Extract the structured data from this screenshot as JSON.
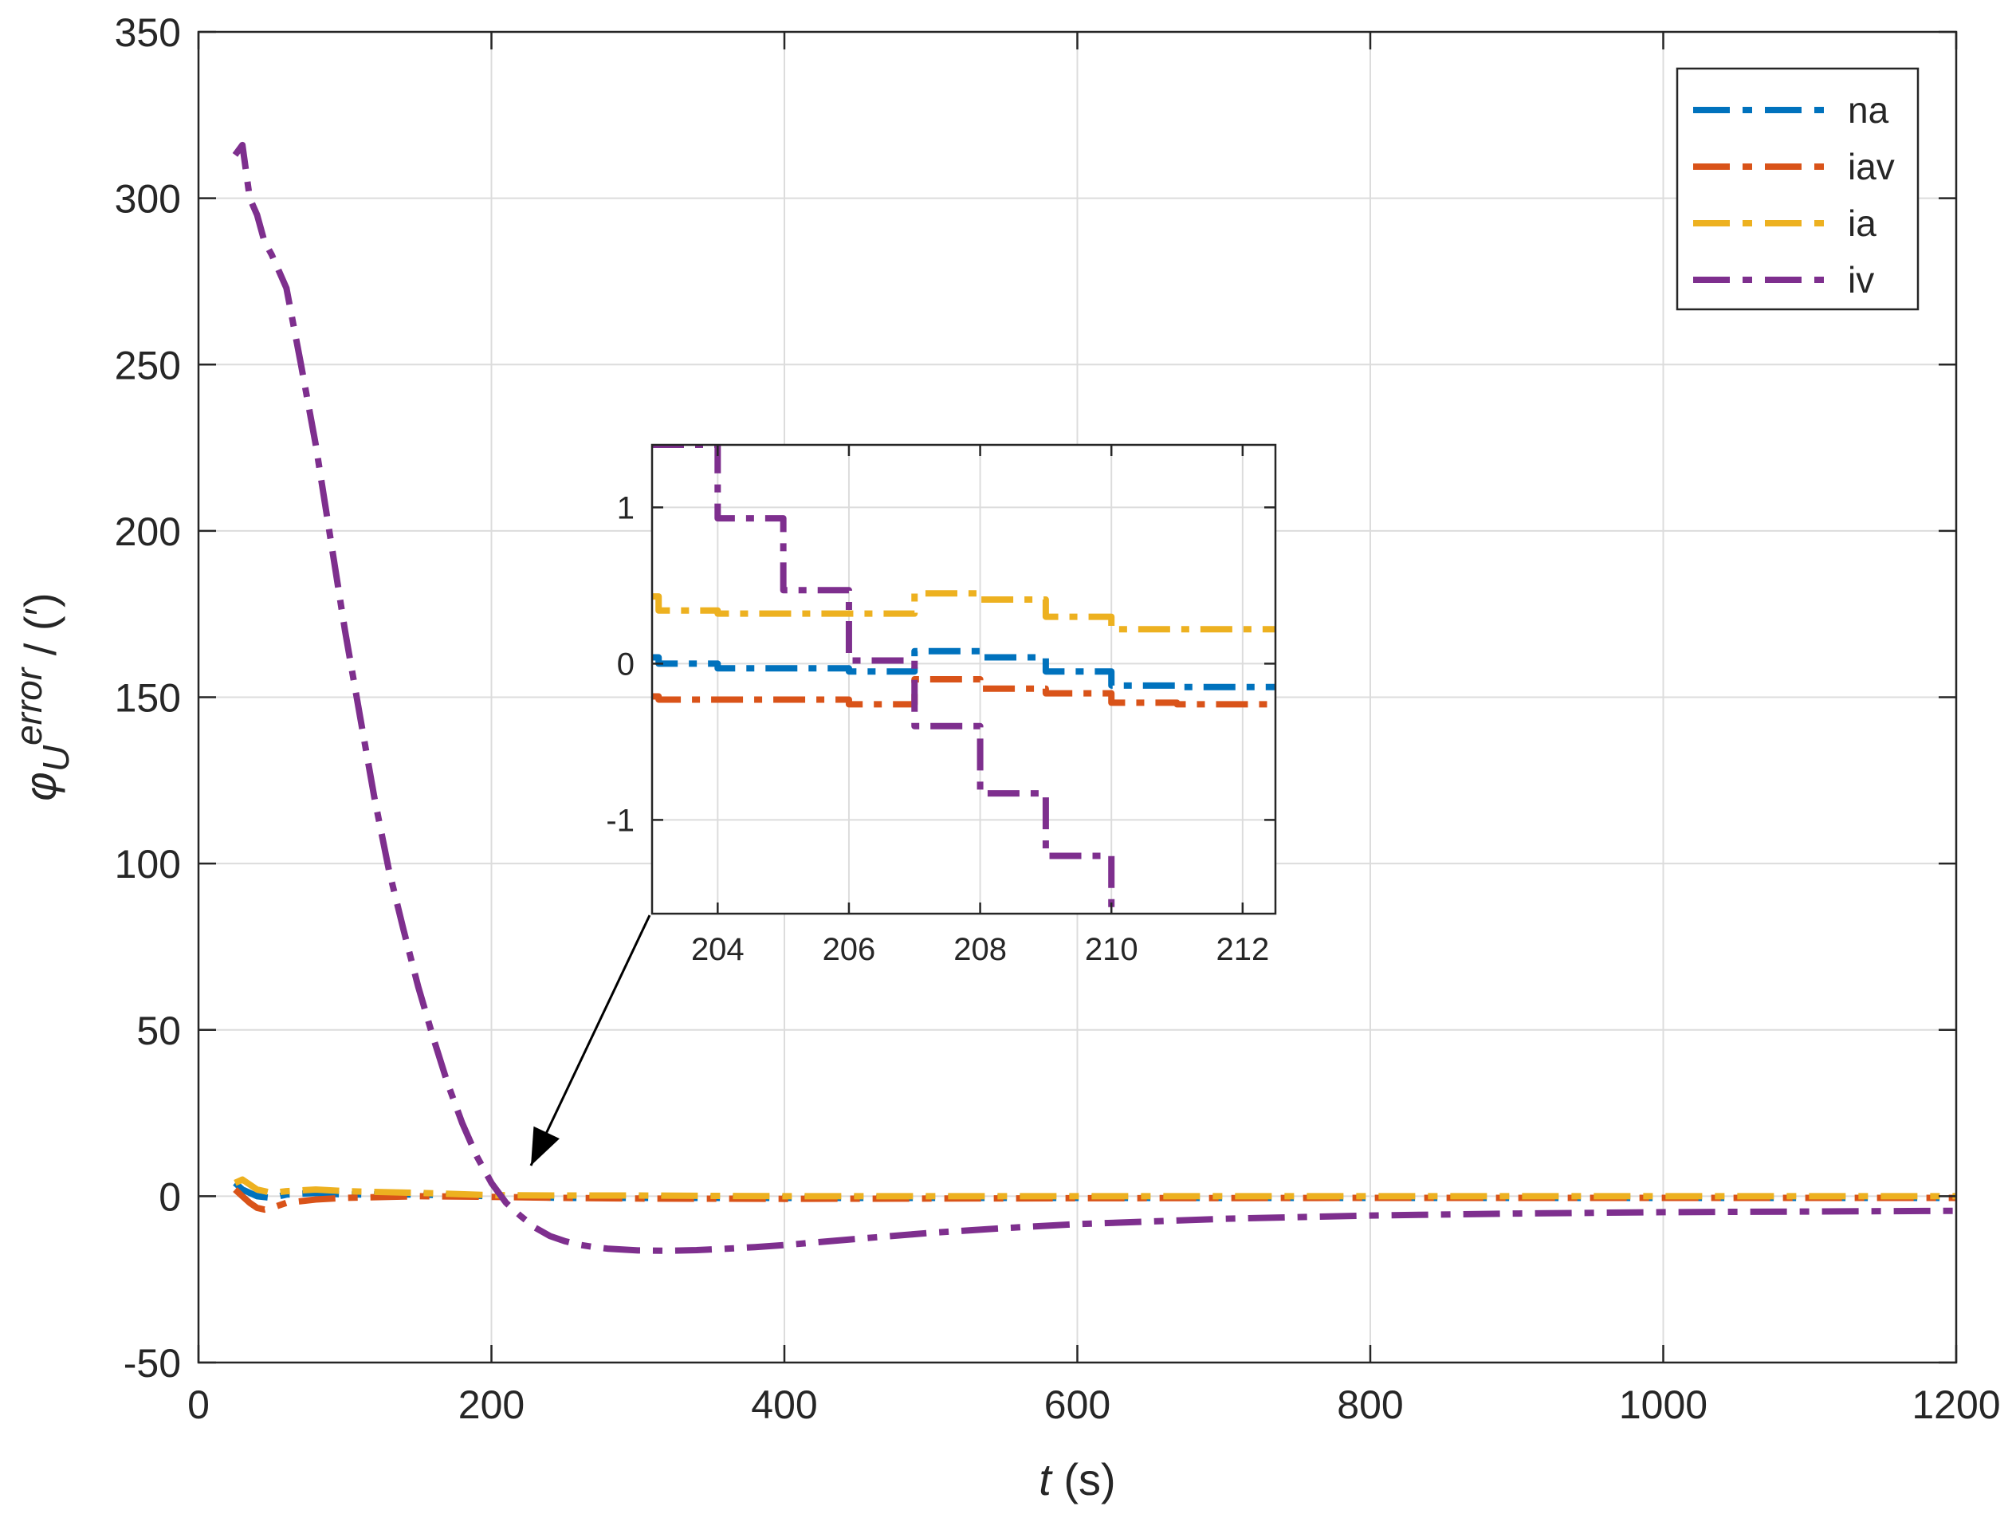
{
  "chart_data": [
    {
      "type": "line",
      "title": "",
      "xlabel": "t",
      "xlabel_unit": "(s)",
      "ylabel_symbol": "φ",
      "ylabel_sub": "U",
      "ylabel_sup": "error",
      "ylabel_unit": "/ (′)",
      "xlim": [
        0,
        1200
      ],
      "ylim": [
        -50,
        350
      ],
      "xticks": [
        0,
        200,
        400,
        600,
        800,
        1000,
        1200
      ],
      "yticks": [
        -50,
        0,
        50,
        100,
        150,
        200,
        250,
        300,
        350
      ],
      "grid": true,
      "legend_position": "top-right",
      "series": [
        {
          "name": "na",
          "color": "#0072BD",
          "x": [
            25,
            30,
            40,
            50,
            60,
            80,
            100,
            150,
            200,
            250,
            300,
            400,
            600,
            800,
            1000,
            1200
          ],
          "y": [
            4,
            2,
            0,
            -0.5,
            0.5,
            1,
            0.5,
            0.5,
            0,
            -0.5,
            -0.5,
            -0.5,
            -0.5,
            -0.5,
            -0.5,
            -0.5
          ]
        },
        {
          "name": "iav",
          "color": "#D95319",
          "x": [
            25,
            30,
            35,
            40,
            45,
            50,
            60,
            80,
            100,
            150,
            200,
            250,
            300,
            400,
            600,
            800,
            1000,
            1200
          ],
          "y": [
            2,
            0,
            -2,
            -3.5,
            -4,
            -3.5,
            -2,
            -1,
            -0.5,
            0,
            -0.2,
            -0.5,
            -0.7,
            -0.8,
            -0.6,
            -0.5,
            -0.5,
            -0.5
          ]
        },
        {
          "name": "ia",
          "color": "#EDB120",
          "x": [
            25,
            30,
            40,
            50,
            60,
            80,
            100,
            150,
            200,
            250,
            300,
            400,
            600,
            800,
            1000,
            1200
          ],
          "y": [
            4,
            5,
            2,
            1,
            1.5,
            2,
            1.5,
            1,
            0.3,
            0.2,
            0.2,
            0,
            0,
            0,
            0,
            0
          ]
        },
        {
          "name": "iv",
          "color": "#7E2F8E",
          "x": [
            25,
            30,
            35,
            40,
            45,
            50,
            55,
            60,
            70,
            80,
            90,
            100,
            110,
            120,
            130,
            140,
            150,
            160,
            170,
            180,
            190,
            200,
            210,
            220,
            230,
            240,
            250,
            260,
            270,
            280,
            300,
            320,
            340,
            360,
            380,
            400,
            450,
            500,
            550,
            600,
            700,
            800,
            900,
            1000,
            1100,
            1200
          ],
          "y": [
            313,
            316,
            300,
            295,
            287,
            283,
            278,
            273,
            250,
            226,
            198,
            170,
            145,
            120,
            98,
            80,
            63,
            48,
            34,
            22,
            12,
            4,
            -2,
            -6,
            -9.5,
            -12,
            -13.5,
            -14.6,
            -15.3,
            -15.8,
            -16.3,
            -16.4,
            -16.2,
            -15.8,
            -15.3,
            -14.7,
            -12.8,
            -11,
            -9.6,
            -8.4,
            -6.8,
            -5.8,
            -5.2,
            -4.8,
            -4.6,
            -4.4
          ]
        }
      ],
      "annotation_arrow": {
        "from": [
          213,
          1.2
        ],
        "to": [
          217,
          7
        ],
        "label": ""
      }
    },
    {
      "type": "line",
      "role": "inset",
      "title": "",
      "xlabel": "",
      "ylabel": "",
      "xlim": [
        203,
        212.5
      ],
      "ylim": [
        -1.6,
        1.4
      ],
      "xticks": [
        204,
        206,
        208,
        210,
        212
      ],
      "yticks": [
        -1,
        0,
        1
      ],
      "grid": true,
      "series": [
        {
          "name": "na",
          "color": "#0072BD",
          "x": [
            203,
            203.1,
            204,
            206,
            207,
            208,
            209,
            210,
            211,
            212.5
          ],
          "y": [
            0.04,
            0.0,
            -0.03,
            -0.05,
            0.08,
            0.04,
            -0.05,
            -0.14,
            -0.15,
            -0.13
          ]
        },
        {
          "name": "iav",
          "color": "#D95319",
          "x": [
            203,
            203.1,
            204,
            206,
            207,
            208,
            209,
            210,
            211,
            212.5
          ],
          "y": [
            -0.21,
            -0.23,
            -0.23,
            -0.26,
            -0.1,
            -0.16,
            -0.19,
            -0.25,
            -0.26,
            -0.26
          ]
        },
        {
          "name": "ia",
          "color": "#EDB120",
          "x": [
            203,
            203.1,
            204,
            206,
            207,
            208,
            209,
            210,
            211,
            212.5
          ],
          "y": [
            0.43,
            0.34,
            0.32,
            0.32,
            0.45,
            0.41,
            0.3,
            0.22,
            0.22,
            0.22
          ]
        },
        {
          "name": "iv",
          "color": "#7E2F8E",
          "x": [
            203,
            204,
            205,
            206,
            207,
            208,
            209,
            210,
            210.05
          ],
          "y": [
            1.4,
            0.93,
            0.47,
            0.02,
            -0.4,
            -0.83,
            -1.23,
            -1.6,
            -1.6
          ],
          "step": true
        }
      ]
    }
  ]
}
